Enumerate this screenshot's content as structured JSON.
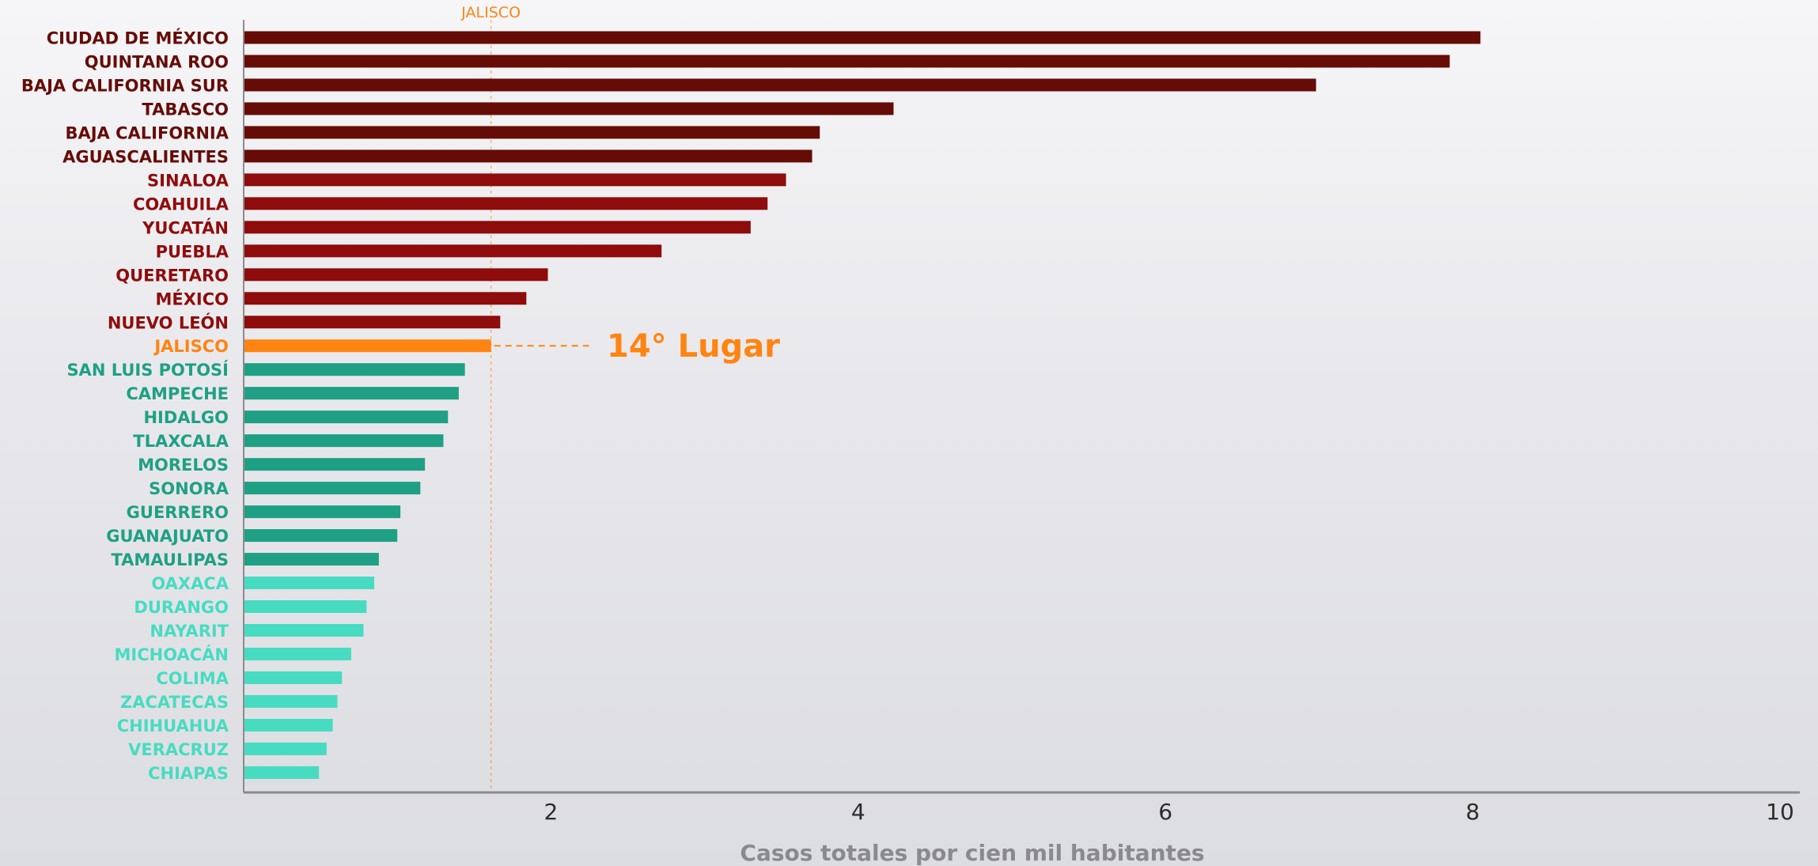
{
  "chart_data": {
    "type": "bar",
    "orientation": "horizontal",
    "xlabel": "Casos totales por cien mil habitantes",
    "xlim": [
      0,
      10
    ],
    "xticks": [
      2,
      4,
      6,
      8,
      10
    ],
    "highlight": {
      "category": "JALISCO",
      "rank_label": "14° Lugar",
      "reference_label": "JALISCO"
    },
    "colors": {
      "dark_red": "#650c07",
      "red": "#8e0c0b",
      "highlight": "#ff8412",
      "dark_teal": "#1fa085",
      "light_teal": "#47dcc2",
      "axis": "#8c8c90"
    },
    "categories": [
      "CIUDAD DE MÉXICO",
      "QUINTANA ROO",
      "BAJA CALIFORNIA SUR",
      "TABASCO",
      "BAJA CALIFORNIA",
      "AGUASCALIENTES",
      "SINALOA",
      "COAHUILA",
      "YUCATÁN",
      "PUEBLA",
      "QUERETARO",
      "MÉXICO",
      "NUEVO LEÓN",
      "JALISCO",
      "SAN LUIS POTOSÍ",
      "CAMPECHE",
      "HIDALGO",
      "TLAXCALA",
      "MORELOS",
      "SONORA",
      "GUERRERO",
      "GUANAJUATO",
      "TAMAULIPAS",
      "OAXACA",
      "DURANGO",
      "NAYARIT",
      "MICHOACÁN",
      "COLIMA",
      "ZACATECAS",
      "CHIHUAHUA",
      "VERACRUZ",
      "CHIAPAS"
    ],
    "values": [
      8.05,
      7.85,
      6.98,
      4.23,
      3.75,
      3.7,
      3.53,
      3.41,
      3.3,
      2.72,
      1.98,
      1.84,
      1.67,
      1.61,
      1.44,
      1.4,
      1.33,
      1.3,
      1.18,
      1.15,
      1.02,
      1.0,
      0.88,
      0.85,
      0.8,
      0.78,
      0.7,
      0.64,
      0.61,
      0.58,
      0.54,
      0.49
    ],
    "groups": [
      "dark_red",
      "dark_red",
      "dark_red",
      "dark_red",
      "dark_red",
      "dark_red",
      "red",
      "red",
      "red",
      "red",
      "red",
      "red",
      "red",
      "highlight",
      "dark_teal",
      "dark_teal",
      "dark_teal",
      "dark_teal",
      "dark_teal",
      "dark_teal",
      "dark_teal",
      "dark_teal",
      "dark_teal",
      "light_teal",
      "light_teal",
      "light_teal",
      "light_teal",
      "light_teal",
      "light_teal",
      "light_teal",
      "light_teal",
      "light_teal"
    ]
  }
}
